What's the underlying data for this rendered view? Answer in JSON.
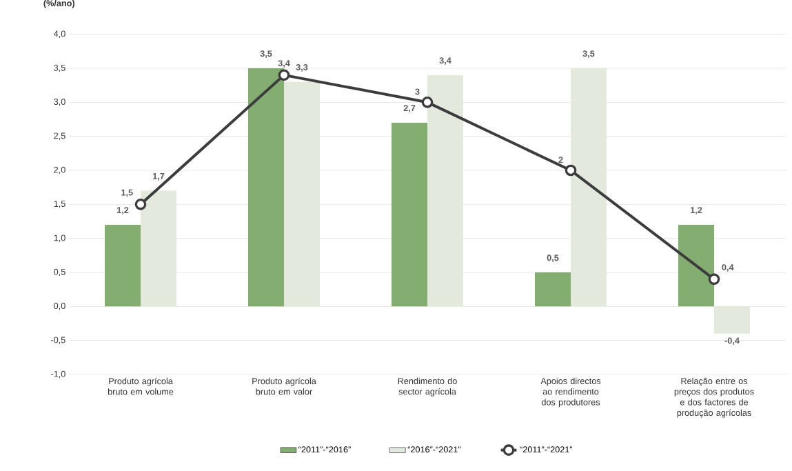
{
  "chart_data": {
    "type": "bar",
    "ylabel": "(%/ano)",
    "categories": [
      "Produto agrícola bruto em volume",
      "Produto agrícola bruto em valor",
      "Rendimento do sector agrícola",
      "Apoios directos ao rendimento dos produtores",
      "Relação entre os preços dos produtos e dos factores de produção agrícolas"
    ],
    "series": [
      {
        "name": "“2011”-“2016”",
        "color": "#84ad72",
        "values": [
          1.2,
          3.5,
          2.7,
          0.5,
          1.2
        ],
        "value_labels": [
          "1,2",
          "3,5",
          "2,7",
          "0,5",
          "1,2"
        ]
      },
      {
        "name": "“2016”-“2021”",
        "color": "#e3e9dd",
        "values": [
          1.7,
          3.3,
          3.4,
          3.5,
          -0.4
        ],
        "value_labels": [
          "1,7",
          "3,3",
          "3,4",
          "3,5",
          "-0,4"
        ]
      },
      {
        "name": "“2011”-“2021”",
        "type": "line",
        "color": "#3c3c3c",
        "marker": "circle",
        "values": [
          1.5,
          3.4,
          3,
          2,
          0.4
        ],
        "value_labels": [
          "1,5",
          "3,4",
          "3",
          "2",
          "0,4"
        ]
      }
    ],
    "ylim": [
      -1,
      4
    ],
    "yticks": [
      {
        "value": -1,
        "label": "-1,0"
      },
      {
        "value": -0.5,
        "label": "-0,5"
      },
      {
        "value": 0,
        "label": "0,0"
      },
      {
        "value": 0.5,
        "label": "0,5"
      },
      {
        "value": 1,
        "label": "1,0"
      },
      {
        "value": 1.5,
        "label": "1,5"
      },
      {
        "value": 2,
        "label": "2,0"
      },
      {
        "value": 2.5,
        "label": "2,5"
      },
      {
        "value": 3,
        "label": "3,0"
      },
      {
        "value": 3.5,
        "label": "3,5"
      },
      {
        "value": 4,
        "label": "4,0"
      }
    ],
    "grid": "y",
    "legend": "bottom"
  }
}
